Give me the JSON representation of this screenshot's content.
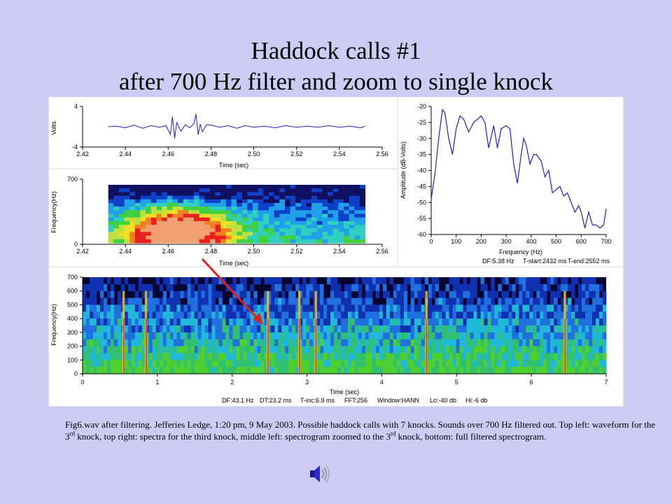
{
  "slide": {
    "title_line1": "Haddock calls #1",
    "title_line2": "after 700 Hz filter and zoom to single knock"
  },
  "caption": {
    "part1": "Fig6.wav after filtering. Jefferies Ledge, 1:20 pm, 9 May 2003.  Possible haddock calls with 7 knocks.  Sounds over 700 Hz filtered out. Top left: waveform for the 3",
    "sup1": "rd",
    "part2": " knock, top right: spectra for the third knock, middle left: spectrogram zoomed to the 3",
    "sup2": "rd",
    "part3": " knock, bottom: full filtered spectrogram."
  },
  "icons": {
    "speaker": "speaker-icon"
  },
  "colors": {
    "background": "#ccccf6",
    "line": "#2020c0",
    "arrow": "#e02020"
  },
  "chart_data": [
    {
      "type": "line",
      "xlabel": "Time (sec)",
      "ylabel": "Volts",
      "xlim": [
        2.42,
        2.56
      ],
      "ylim": [
        -4,
        4
      ],
      "xticks": [
        "2.42",
        "2.44",
        "2.46",
        "2.48",
        "2.50",
        "2.52",
        "2.54",
        "2.56"
      ],
      "yticks": [
        "4",
        "-4"
      ],
      "x": [
        2.432,
        2.436,
        2.44,
        2.444,
        2.448,
        2.452,
        2.456,
        2.459,
        2.461,
        2.462,
        2.463,
        2.464,
        2.466,
        2.468,
        2.47,
        2.472,
        2.473,
        2.474,
        2.475,
        2.476,
        2.478,
        2.48,
        2.484,
        2.488,
        2.492,
        2.496,
        2.5,
        2.505,
        2.51,
        2.515,
        2.52,
        2.525,
        2.53,
        2.535,
        2.54,
        2.545,
        2.55,
        2.552
      ],
      "y": [
        0.0,
        0.1,
        -0.2,
        0.3,
        -0.3,
        0.2,
        -0.1,
        0.2,
        -1.5,
        2.0,
        -2.3,
        0.8,
        -0.9,
        0.4,
        -0.2,
        0.6,
        2.5,
        -1.6,
        0.5,
        -1.0,
        0.4,
        0.3,
        -0.1,
        0.2,
        -0.3,
        0.2,
        -0.1,
        0.1,
        -0.2,
        0.2,
        -0.1,
        0.1,
        -0.1,
        0.2,
        -0.1,
        0.1,
        -0.2,
        0.1
      ]
    },
    {
      "type": "heatmap",
      "xlabel": "Time (sec)",
      "ylabel": "Frequency(Hz)",
      "xlim": [
        2.42,
        2.56
      ],
      "ylim": [
        0,
        700
      ],
      "xticks": [
        "2.42",
        "2.44",
        "2.46",
        "2.48",
        "2.50",
        "2.52",
        "2.54",
        "2.56"
      ],
      "yticks": [
        "700",
        "0"
      ],
      "data_xlim": [
        2.432,
        2.552
      ],
      "energy_peak_time": 2.465,
      "energy_peak_frequency": 150
    },
    {
      "type": "line",
      "xlabel": "Frequency (Hz)",
      "ylabel": "Amplitude (dB-Volts)",
      "xlim": [
        0,
        700
      ],
      "ylim": [
        -60,
        -20
      ],
      "xticks": [
        "0",
        "100",
        "200",
        "300",
        "400",
        "500",
        "600",
        "700"
      ],
      "yticks": [
        "-20",
        "-25",
        "-30",
        "-35",
        "-40",
        "-45",
        "-50",
        "-55",
        "-60"
      ],
      "x": [
        0,
        15,
        30,
        45,
        55,
        70,
        85,
        100,
        115,
        130,
        150,
        170,
        185,
        200,
        215,
        230,
        250,
        265,
        280,
        300,
        315,
        330,
        345,
        360,
        370,
        380,
        395,
        410,
        420,
        440,
        455,
        470,
        485,
        500,
        515,
        530,
        545,
        560,
        575,
        590,
        600,
        615,
        630,
        645,
        660,
        675,
        690,
        700
      ],
      "y": [
        -49,
        -41,
        -30,
        -21,
        -22,
        -30,
        -35,
        -27,
        -23,
        -24,
        -28,
        -25,
        -24,
        -23,
        -25,
        -33,
        -26,
        -33,
        -27,
        -26,
        -27,
        -38,
        -44,
        -35,
        -30,
        -32,
        -38,
        -35,
        -35,
        -37,
        -42,
        -40,
        -47,
        -46,
        -45,
        -48,
        -47,
        -50,
        -53,
        -51,
        -53,
        -58,
        -53,
        -57,
        -57,
        -58,
        -57,
        -52
      ]
    },
    {
      "type": "heatmap",
      "xlabel": "Time (sec)",
      "ylabel": "Frequency(Hz)",
      "xlim": [
        0,
        7
      ],
      "ylim": [
        0,
        700
      ],
      "xticks": [
        "0",
        "1",
        "2",
        "3",
        "4",
        "5",
        "6",
        "7"
      ],
      "yticks": [
        "0",
        "100",
        "200",
        "300",
        "400",
        "500",
        "600",
        "700"
      ],
      "knock_times": [
        0.55,
        0.85,
        2.48,
        2.9,
        3.12,
        4.6,
        6.45
      ],
      "params": {
        "df": "DF:43.1 Hz",
        "dt": "DT:23.2 ms",
        "tinc": "T-inc:6.9 ms",
        "fft": "FFT:256",
        "window": "Window:HANN",
        "lo": "Lo:-40 db",
        "hi": "Hi:-6 db"
      }
    }
  ],
  "spectrum_info": {
    "df": "DF:5.38 Hz",
    "tstart": "T-start:2432 ms",
    "tend": "T-end:2552 ms"
  }
}
